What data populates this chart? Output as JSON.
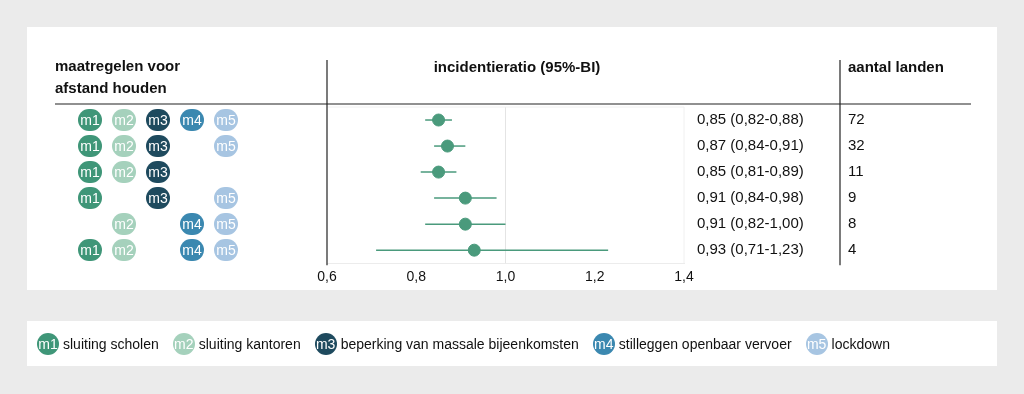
{
  "chart_data": {
    "type": "scatter",
    "orientation": "horizontal",
    "title": "incidentieratio (95%-BI)",
    "categories": [
      "m1 m2 m3 m4 m5",
      "m1 m2 m3 m5",
      "m1 m2 m3",
      "m1 m3 m5",
      "m2 m4 m5",
      "m1 m2 m4 m5"
    ],
    "series": [
      {
        "color": "#4a9a7c",
        "values": [
          0.85,
          0.87,
          0.85,
          0.91,
          0.91,
          0.93
        ],
        "errors": [
          [
            0.82,
            0.88
          ],
          [
            0.84,
            0.91
          ],
          [
            0.81,
            0.89
          ],
          [
            0.84,
            0.98
          ],
          [
            0.82,
            1.0
          ],
          [
            0.71,
            1.23
          ]
        ],
        "value_labels": [
          "0,85 (0,82-0,88)",
          "0,87 (0,84-0,91)",
          "0,85 (0,81-0,89)",
          "0,91 (0,84-0,98)",
          "0,91 (0,82-1,00)",
          "0,93 (0,71-1,23)"
        ]
      }
    ],
    "xlim": [
      0.6,
      1.4
    ],
    "xticks": [
      {
        "value": 0.6,
        "label": "0,6"
      },
      {
        "value": 0.8,
        "label": "0,8"
      },
      {
        "value": 1.0,
        "label": "1,0"
      },
      {
        "value": 1.2,
        "label": "1,2"
      },
      {
        "value": 1.4,
        "label": "1,4"
      }
    ],
    "ref_lines": [
      {
        "axis": "x",
        "value": 1.0,
        "color": "#e4e4e4"
      }
    ],
    "marker": "circle",
    "grid": false,
    "legend": false,
    "annotations": [
      "maatregelen voor afstand houden",
      "aantal landen",
      "m1 sluiting scholen",
      "m2 sluiting kantoren",
      "m3 beperking van massale bijeenkomsten",
      "m4 stilleggen openbaar vervoer",
      "m5 lockdown",
      "72",
      "32",
      "11",
      "9",
      "8",
      "4"
    ]
  }
}
